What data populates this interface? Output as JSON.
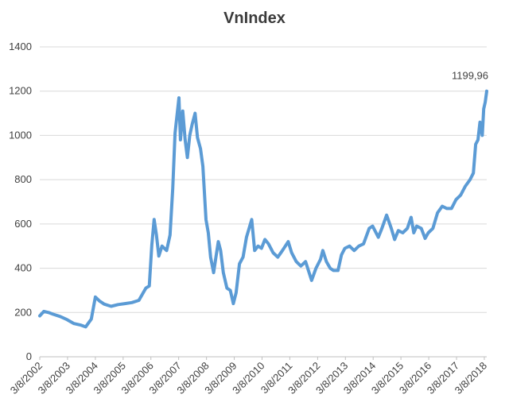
{
  "chart_data": {
    "type": "line",
    "title": "VnIndex",
    "xlabel": "",
    "ylabel": "",
    "ylim": [
      0,
      1400
    ],
    "y_ticks": [
      0,
      200,
      400,
      600,
      800,
      1000,
      1200,
      1400
    ],
    "xlim": [
      "2002-03-08",
      "2018-04-09"
    ],
    "x_ticks": [
      "3/8/2002",
      "3/8/2003",
      "3/8/2004",
      "3/8/2005",
      "3/8/2006",
      "3/8/2007",
      "3/8/2008",
      "3/8/2009",
      "3/8/2010",
      "3/8/2011",
      "3/8/2012",
      "3/8/2013",
      "3/8/2014",
      "3/8/2015",
      "3/8/2016",
      "3/8/2017",
      "3/8/2018"
    ],
    "grid": true,
    "legend": "none",
    "color": "#5b9bd5",
    "series": [
      {
        "points": [
          [
            "2002-03-08",
            185
          ],
          [
            "2002-05-01",
            205
          ],
          [
            "2002-07-01",
            200
          ],
          [
            "2002-09-01",
            192
          ],
          [
            "2002-12-01",
            182
          ],
          [
            "2003-03-01",
            168
          ],
          [
            "2003-06-01",
            150
          ],
          [
            "2003-09-01",
            143
          ],
          [
            "2003-11-01",
            135
          ],
          [
            "2004-01-15",
            170
          ],
          [
            "2004-03-08",
            270
          ],
          [
            "2004-05-01",
            252
          ],
          [
            "2004-07-01",
            238
          ],
          [
            "2004-10-01",
            228
          ],
          [
            "2005-01-01",
            236
          ],
          [
            "2005-04-01",
            240
          ],
          [
            "2005-07-01",
            245
          ],
          [
            "2005-10-01",
            255
          ],
          [
            "2006-01-01",
            310
          ],
          [
            "2006-02-15",
            320
          ],
          [
            "2006-03-20",
            505
          ],
          [
            "2006-04-20",
            620
          ],
          [
            "2006-05-20",
            550
          ],
          [
            "2006-06-20",
            455
          ],
          [
            "2006-08-01",
            500
          ],
          [
            "2006-10-01",
            480
          ],
          [
            "2006-11-15",
            550
          ],
          [
            "2006-12-20",
            760
          ],
          [
            "2007-01-20",
            1010
          ],
          [
            "2007-03-12",
            1170
          ],
          [
            "2007-04-01",
            980
          ],
          [
            "2007-05-01",
            1110
          ],
          [
            "2007-06-01",
            980
          ],
          [
            "2007-07-01",
            900
          ],
          [
            "2007-08-01",
            1000
          ],
          [
            "2007-09-01",
            1050
          ],
          [
            "2007-10-10",
            1100
          ],
          [
            "2007-11-10",
            990
          ],
          [
            "2007-12-20",
            940
          ],
          [
            "2008-01-20",
            860
          ],
          [
            "2008-03-01",
            620
          ],
          [
            "2008-04-01",
            560
          ],
          [
            "2008-05-01",
            450
          ],
          [
            "2008-06-10",
            380
          ],
          [
            "2008-07-10",
            450
          ],
          [
            "2008-08-10",
            520
          ],
          [
            "2008-09-10",
            480
          ],
          [
            "2008-10-15",
            380
          ],
          [
            "2008-12-01",
            310
          ],
          [
            "2009-01-15",
            300
          ],
          [
            "2009-02-24",
            240
          ],
          [
            "2009-04-01",
            290
          ],
          [
            "2009-05-15",
            420
          ],
          [
            "2009-07-01",
            450
          ],
          [
            "2009-08-15",
            540
          ],
          [
            "2009-10-23",
            620
          ],
          [
            "2009-12-01",
            480
          ],
          [
            "2010-01-15",
            500
          ],
          [
            "2010-03-01",
            490
          ],
          [
            "2010-04-15",
            530
          ],
          [
            "2010-06-01",
            510
          ],
          [
            "2010-08-01",
            470
          ],
          [
            "2010-10-01",
            450
          ],
          [
            "2010-12-01",
            480
          ],
          [
            "2011-02-15",
            520
          ],
          [
            "2011-04-01",
            470
          ],
          [
            "2011-06-01",
            430
          ],
          [
            "2011-08-01",
            410
          ],
          [
            "2011-10-01",
            430
          ],
          [
            "2011-12-20",
            345
          ],
          [
            "2012-02-15",
            400
          ],
          [
            "2012-04-15",
            440
          ],
          [
            "2012-05-15",
            480
          ],
          [
            "2012-07-01",
            430
          ],
          [
            "2012-08-20",
            400
          ],
          [
            "2012-10-01",
            390
          ],
          [
            "2012-12-01",
            390
          ],
          [
            "2013-01-15",
            460
          ],
          [
            "2013-03-01",
            490
          ],
          [
            "2013-05-01",
            500
          ],
          [
            "2013-07-01",
            480
          ],
          [
            "2013-09-01",
            500
          ],
          [
            "2013-11-01",
            510
          ],
          [
            "2014-01-15",
            580
          ],
          [
            "2014-03-01",
            590
          ],
          [
            "2014-05-15",
            540
          ],
          [
            "2014-07-01",
            580
          ],
          [
            "2014-09-01",
            640
          ],
          [
            "2014-11-01",
            580
          ],
          [
            "2014-12-15",
            530
          ],
          [
            "2015-02-01",
            570
          ],
          [
            "2015-04-01",
            560
          ],
          [
            "2015-06-01",
            580
          ],
          [
            "2015-07-20",
            630
          ],
          [
            "2015-08-24",
            560
          ],
          [
            "2015-10-01",
            590
          ],
          [
            "2015-12-01",
            580
          ],
          [
            "2016-01-20",
            535
          ],
          [
            "2016-03-01",
            560
          ],
          [
            "2016-05-01",
            580
          ],
          [
            "2016-07-01",
            650
          ],
          [
            "2016-09-01",
            680
          ],
          [
            "2016-11-01",
            670
          ],
          [
            "2017-01-01",
            670
          ],
          [
            "2017-03-01",
            710
          ],
          [
            "2017-05-01",
            730
          ],
          [
            "2017-07-01",
            770
          ],
          [
            "2017-09-01",
            800
          ],
          [
            "2017-10-15",
            830
          ],
          [
            "2017-11-15",
            960
          ],
          [
            "2017-12-15",
            980
          ],
          [
            "2018-01-10",
            1060
          ],
          [
            "2018-02-09",
            1000
          ],
          [
            "2018-02-28",
            1120
          ],
          [
            "2018-03-20",
            1150
          ],
          [
            "2018-04-09",
            1199.96
          ]
        ]
      }
    ],
    "annotations": [
      {
        "text": "1199,96",
        "x": "2018-04-09",
        "y": 1199.96
      }
    ]
  }
}
